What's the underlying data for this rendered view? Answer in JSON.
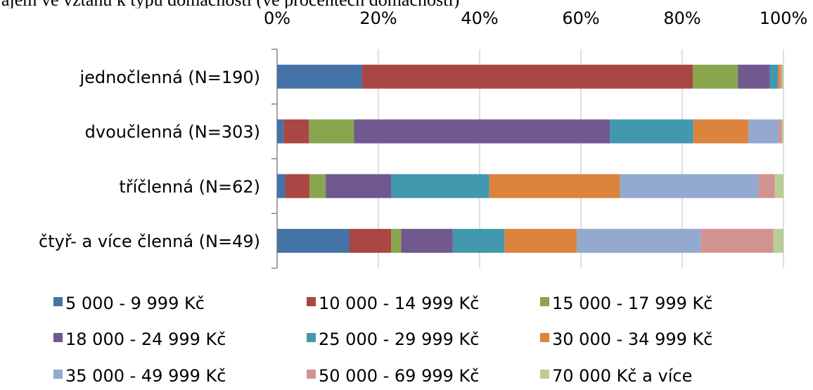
{
  "chart_data": {
    "type": "bar",
    "stacked": "percent",
    "orientation": "horizontal",
    "title": "ajem ve vztahu k typu domácnosti (ve procentech domácností)",
    "xlim": [
      0,
      100
    ],
    "x_ticks": [
      "0%",
      "20%",
      "40%",
      "60%",
      "80%",
      "100%"
    ],
    "grid": true,
    "legend_position": "bottom",
    "categories": [
      "jednočlenná (N=190)",
      "dvoučlenná (N=303)",
      "tříčlenná (N=62)",
      "čtyř- a více členná (N=49)"
    ],
    "series": [
      {
        "name": "5 000 - 9 999 Kč",
        "color": "#4572A7",
        "values": [
          16.8,
          1.3,
          1.6,
          14.3
        ]
      },
      {
        "name": "10 000 - 14 999 Kč",
        "color": "#AA4643",
        "values": [
          65.3,
          5.0,
          4.8,
          8.2
        ]
      },
      {
        "name": "15 000 - 17 999 Kč",
        "color": "#89A54E",
        "values": [
          8.9,
          8.9,
          3.2,
          2.0
        ]
      },
      {
        "name": "18 000 - 24 999 Kč",
        "color": "#71588F",
        "values": [
          6.3,
          50.5,
          12.9,
          10.2
        ]
      },
      {
        "name": "25 000 - 29 999 Kč",
        "color": "#4198AF",
        "values": [
          1.6,
          16.5,
          19.4,
          10.2
        ]
      },
      {
        "name": "30 000 - 34 999 Kč",
        "color": "#DB843D",
        "values": [
          0.5,
          10.9,
          25.8,
          14.3
        ]
      },
      {
        "name": "35 000 - 49 999 Kč",
        "color": "#93A9CF",
        "values": [
          0.0,
          5.9,
          27.4,
          24.5
        ]
      },
      {
        "name": "50 000 - 69 999 Kč",
        "color": "#D19392",
        "values": [
          0.3,
          0.7,
          3.2,
          14.3
        ]
      },
      {
        "name": "70 000 Kč a více",
        "color": "#B9CD96",
        "values": [
          0.3,
          0.3,
          1.7,
          2.0
        ]
      }
    ]
  }
}
